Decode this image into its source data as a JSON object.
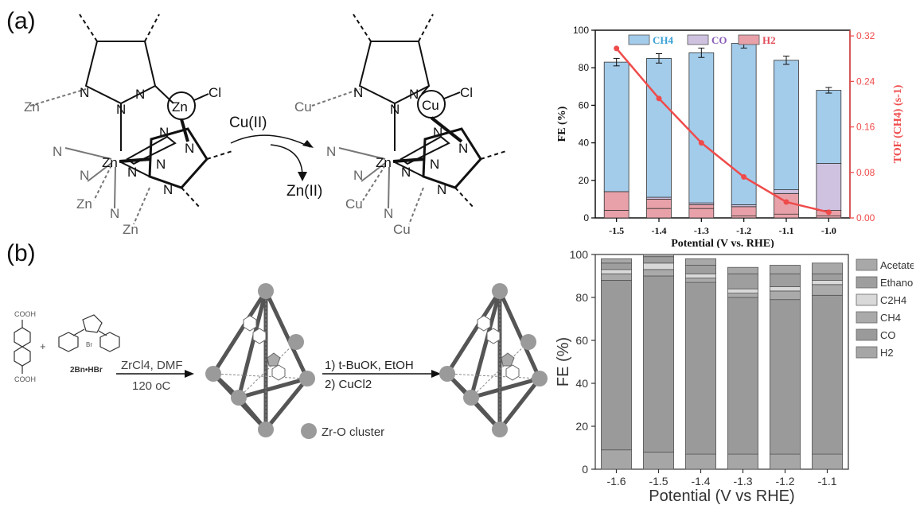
{
  "panels": {
    "a": "(a)",
    "b": "(b)"
  },
  "scheme_a": {
    "left": {
      "metal": "Zn",
      "neighbors": [
        "Zn",
        "N",
        "N",
        "N",
        "N",
        "N",
        "N",
        "Zn",
        "Zn",
        "N",
        "N",
        "N"
      ],
      "ligand": "Cl",
      "center": "Zn"
    },
    "right": {
      "metal": "Cu",
      "neighbors": [
        "Cu",
        "Cu",
        "Cu"
      ],
      "ligand": "Cl",
      "center": "Zn"
    },
    "reagent_in": "Cu(II)",
    "reagent_out": "Zn(II)"
  },
  "scheme_b": {
    "cooh_top": "COOH",
    "cooh_bottom": "COOH",
    "plus": "+",
    "br": "Br",
    "salt_label": "2Bn•HBr",
    "step1_top": "ZrCl4, DMF",
    "step1_bottom": "120 oC",
    "step2_line1": "1) t-BuOK, EtOH",
    "step2_line2": "2) CuCl2",
    "cluster_legend": "Zr-O cluster"
  },
  "chart_data": [
    {
      "type": "bar",
      "stacked": true,
      "categories": [
        "-1.5",
        "-1.4",
        "-1.3",
        "-1.2",
        "-1.1",
        "-1.0"
      ],
      "series": [
        {
          "name": "H2",
          "values": [
            14,
            10,
            7,
            6,
            13,
            4
          ],
          "color": "#e8a1a9"
        },
        {
          "name": "CO",
          "values": [
            0,
            1,
            1,
            1,
            2,
            25
          ],
          "color": "#cfc2e0"
        },
        {
          "name": "CH4",
          "values": [
            69,
            74,
            80,
            86,
            69,
            39
          ],
          "color": "#a3cbea"
        }
      ],
      "error_top": [
        2,
        2.5,
        2.5,
        2.5,
        2.2,
        1.5
      ],
      "h2_band_marks": [
        4,
        5,
        5,
        1,
        2,
        1
      ],
      "xlabel": "Potential (V vs. RHE)",
      "ylabel": "FE (%)",
      "ylim": [
        0,
        100
      ],
      "yticks": [
        0,
        20,
        40,
        60,
        80,
        100
      ],
      "y2label": "TOF (CH4) (s-1)",
      "y2lim": [
        0,
        0.33
      ],
      "y2ticks": [
        "0.00",
        "0.08",
        "0.16",
        "0.24",
        "0.32"
      ],
      "y2tick_values": [
        0,
        0.08,
        0.16,
        0.24,
        0.32
      ],
      "tof_series": {
        "values": [
          0.298,
          0.21,
          0.132,
          0.072,
          0.028,
          0.01
        ],
        "color": "#ef4b4b"
      },
      "legend": [
        "CH4",
        "CO",
        "H2"
      ],
      "legend_placement": "top",
      "legend_colors": [
        "#37a0d6",
        "#8a5cb8",
        "#e24b5b"
      ]
    },
    {
      "type": "bar",
      "stacked": true,
      "categories": [
        "-1.6",
        "-1.5",
        "-1.4",
        "-1.3",
        "-1.2",
        "-1.1"
      ],
      "series": [
        {
          "name": "H2",
          "values": [
            9,
            8,
            7,
            7,
            7,
            7
          ],
          "color": "#a6a6a6"
        },
        {
          "name": "CO",
          "values": [
            79,
            82,
            80,
            73,
            72,
            74
          ],
          "color": "#9a9a9a"
        },
        {
          "name": "CH4",
          "values": [
            3,
            3,
            2,
            2,
            4,
            5
          ],
          "color": "#aaaaaa"
        },
        {
          "name": "C2H4",
          "values": [
            2,
            3,
            2,
            2,
            2,
            2
          ],
          "color": "#d9d9d9"
        },
        {
          "name": "Ethanol",
          "values": [
            3,
            3,
            4,
            7,
            6,
            3
          ],
          "color": "#9e9e9e"
        },
        {
          "name": "Acetate",
          "values": [
            2,
            1,
            3,
            3,
            4,
            5
          ],
          "color": "#a8a8a8"
        }
      ],
      "xlabel": "Potential (V vs RHE)",
      "ylabel": "FE (%)",
      "ylim": [
        0,
        100
      ],
      "yticks": [
        0,
        20,
        40,
        60,
        80,
        100
      ],
      "legend": [
        "Acetate",
        "Ethanol",
        "C2H4",
        "CH4",
        "CO",
        "H2"
      ],
      "legend_placement": "right"
    }
  ]
}
